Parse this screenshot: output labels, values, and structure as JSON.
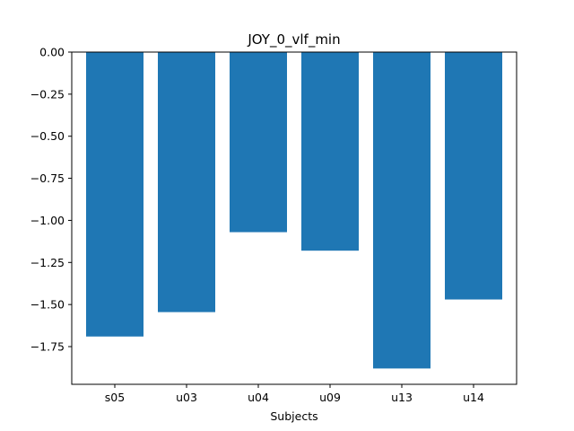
{
  "chart_data": {
    "type": "bar",
    "title": "JOY_0_vlf_min",
    "xlabel": "Subjects",
    "ylabel": "",
    "categories": [
      "s05",
      "u03",
      "u04",
      "u09",
      "u13",
      "u14"
    ],
    "values": [
      -1.69,
      -1.545,
      -1.07,
      -1.18,
      -1.88,
      -1.47
    ],
    "ylim": [
      -1.974,
      0.0
    ],
    "yticks": [
      0.0,
      -0.25,
      -0.5,
      -0.75,
      -1.0,
      -1.25,
      -1.5,
      -1.75
    ],
    "ytick_labels": [
      "0.00",
      "−0.25",
      "−0.50",
      "−0.75",
      "−1.00",
      "−1.25",
      "−1.50",
      "−1.75"
    ],
    "bar_color": "#1f77b4",
    "grid": false,
    "legend": "none"
  }
}
